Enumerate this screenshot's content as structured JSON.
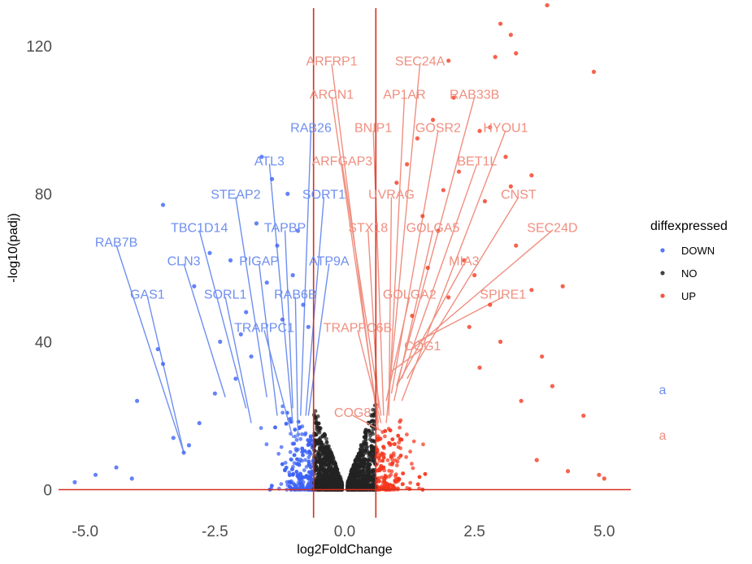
{
  "chart_data": {
    "type": "scatter",
    "xlabel": "log2FoldChange",
    "ylabel": "-log10(padj)",
    "xlim": [
      -5.6,
      5.5
    ],
    "ylim": [
      -7,
      131
    ],
    "x_ticks": [
      {
        "value": -5,
        "label": "-5.0"
      },
      {
        "value": -2.5,
        "label": "-2.5"
      },
      {
        "value": 0,
        "label": "0.0"
      },
      {
        "value": 2.5,
        "label": "2.5"
      },
      {
        "value": 5,
        "label": "5.0"
      }
    ],
    "y_ticks": [
      {
        "value": 0,
        "label": "0"
      },
      {
        "value": 40,
        "label": "40"
      },
      {
        "value": 80,
        "label": "80"
      },
      {
        "value": 120,
        "label": "120"
      }
    ],
    "grid": false,
    "threshold_lines": {
      "vertical": [
        -0.6,
        0.6
      ],
      "horizontal": [
        0
      ]
    },
    "colors": {
      "DOWN": "#3a5ff5",
      "NO": "#222222",
      "UP": "#f4361c",
      "line": "#d7301f",
      "down_label": "#6f8ff0",
      "up_label": "#f08f80"
    },
    "legend": {
      "title": "diffexpressed",
      "position": "right",
      "entries": [
        "DOWN",
        "NO",
        "UP"
      ],
      "extra_glyphs": [
        {
          "text": "a",
          "group": "DOWN"
        },
        {
          "text": "a",
          "group": "UP"
        }
      ]
    },
    "highlight_points": {
      "DOWN": [
        [
          -3.5,
          77
        ],
        [
          -1.6,
          90
        ],
        [
          -1.4,
          84
        ],
        [
          -1.1,
          80
        ],
        [
          -1.7,
          72
        ],
        [
          -2.2,
          62
        ],
        [
          -2.6,
          64
        ],
        [
          -2.9,
          55
        ],
        [
          -3.1,
          10
        ],
        [
          -3.6,
          38
        ],
        [
          -4.0,
          24
        ],
        [
          -3.5,
          34
        ],
        [
          -2.5,
          26
        ],
        [
          -2.1,
          30
        ],
        [
          -1.9,
          48
        ],
        [
          -1.5,
          56
        ],
        [
          -1.3,
          66
        ],
        [
          -1.0,
          58
        ],
        [
          -0.9,
          70
        ],
        [
          -1.2,
          46
        ],
        [
          -0.8,
          50
        ],
        [
          -0.7,
          44
        ],
        [
          -2.8,
          18
        ],
        [
          -2.4,
          40
        ],
        [
          -1.8,
          36
        ],
        [
          -3.3,
          14
        ],
        [
          -4.4,
          6
        ],
        [
          -4.8,
          4
        ],
        [
          -5.2,
          2
        ],
        [
          -4.1,
          3
        ],
        [
          -3.0,
          12
        ],
        [
          -2.0,
          42
        ]
      ],
      "UP": [
        [
          3.9,
          131
        ],
        [
          3.0,
          126
        ],
        [
          3.2,
          123
        ],
        [
          4.8,
          113
        ],
        [
          3.3,
          118
        ],
        [
          2.9,
          117
        ],
        [
          2.0,
          116
        ],
        [
          2.1,
          106
        ],
        [
          2.6,
          97
        ],
        [
          2.8,
          98
        ],
        [
          3.1,
          90
        ],
        [
          3.6,
          85
        ],
        [
          3.2,
          82
        ],
        [
          2.2,
          86
        ],
        [
          1.9,
          81
        ],
        [
          2.7,
          78
        ],
        [
          3.3,
          66
        ],
        [
          2.5,
          58
        ],
        [
          4.2,
          55
        ],
        [
          3.6,
          54
        ],
        [
          2.8,
          50
        ],
        [
          1.7,
          100
        ],
        [
          1.4,
          95
        ],
        [
          1.2,
          88
        ],
        [
          1.0,
          83
        ],
        [
          1.5,
          74
        ],
        [
          1.8,
          70
        ],
        [
          2.3,
          62
        ],
        [
          1.6,
          60
        ],
        [
          2.0,
          52
        ],
        [
          1.3,
          47
        ],
        [
          2.4,
          44
        ],
        [
          3.0,
          40
        ],
        [
          3.8,
          36
        ],
        [
          4.6,
          20
        ],
        [
          4.0,
          28
        ],
        [
          3.4,
          24
        ],
        [
          2.6,
          33
        ],
        [
          4.9,
          4
        ],
        [
          5.0,
          3
        ],
        [
          4.3,
          5
        ],
        [
          3.7,
          8
        ]
      ]
    },
    "labels": [
      {
        "gene": "RAB7B",
        "group": "DOWN",
        "x": -3.1,
        "y": 10,
        "lx": -4.4,
        "ly": 67
      },
      {
        "gene": "GAS1",
        "group": "DOWN",
        "x": -3.1,
        "y": 10,
        "lx": -3.8,
        "ly": 53
      },
      {
        "gene": "CLN3",
        "group": "DOWN",
        "x": -2.3,
        "y": 25,
        "lx": -3.1,
        "ly": 62
      },
      {
        "gene": "TBC1D14",
        "group": "DOWN",
        "x": -1.9,
        "y": 22,
        "lx": -2.8,
        "ly": 71
      },
      {
        "gene": "SORL1",
        "group": "DOWN",
        "x": -1.8,
        "y": 18,
        "lx": -2.3,
        "ly": 53
      },
      {
        "gene": "STEAP2",
        "group": "DOWN",
        "x": -1.5,
        "y": 25,
        "lx": -2.1,
        "ly": 80
      },
      {
        "gene": "PIGAP",
        "group": "DOWN",
        "x": -1.3,
        "y": 20,
        "lx": -1.65,
        "ly": 62
      },
      {
        "gene": "ATL3",
        "group": "DOWN",
        "x": -1.0,
        "y": 18,
        "lx": -1.45,
        "ly": 89
      },
      {
        "gene": "TRAPPC1",
        "group": "DOWN",
        "x": -1.0,
        "y": 14,
        "lx": -1.55,
        "ly": 44
      },
      {
        "gene": "TAPBP",
        "group": "DOWN",
        "x": -1.0,
        "y": 22,
        "lx": -1.15,
        "ly": 71
      },
      {
        "gene": "RAB6B",
        "group": "DOWN",
        "x": -0.9,
        "y": 14,
        "lx": -0.95,
        "ly": 53
      },
      {
        "gene": "RAB26",
        "group": "DOWN",
        "x": -0.85,
        "y": 20,
        "lx": -0.65,
        "ly": 98
      },
      {
        "gene": "SORT1",
        "group": "DOWN",
        "x": -0.75,
        "y": 20,
        "lx": -0.4,
        "ly": 80
      },
      {
        "gene": "ATP9A",
        "group": "DOWN",
        "x": -0.7,
        "y": 20,
        "lx": -0.3,
        "ly": 62
      },
      {
        "gene": "ARFRP1",
        "group": "UP",
        "x": 0.65,
        "y": 16,
        "lx": -0.25,
        "ly": 116
      },
      {
        "gene": "ARCN1",
        "group": "UP",
        "x": 0.65,
        "y": 18,
        "lx": -0.25,
        "ly": 107
      },
      {
        "gene": "ARFGAP3",
        "group": "UP",
        "x": 0.7,
        "y": 20,
        "lx": -0.05,
        "ly": 89
      },
      {
        "gene": "STX18",
        "group": "UP",
        "x": 0.65,
        "y": 22,
        "lx": 0.45,
        "ly": 71
      },
      {
        "gene": "TRAPPC6B",
        "group": "UP",
        "x": 0.7,
        "y": 18,
        "lx": 0.25,
        "ly": 44
      },
      {
        "gene": "COG8",
        "group": "UP",
        "x": 0.7,
        "y": 16,
        "lx": 0.15,
        "ly": 21
      },
      {
        "gene": "BNIP1",
        "group": "UP",
        "x": 0.75,
        "y": 20,
        "lx": 0.55,
        "ly": 98
      },
      {
        "gene": "SEC24A",
        "group": "UP",
        "x": 0.8,
        "y": 18,
        "lx": 1.45,
        "ly": 116
      },
      {
        "gene": "AP1AR",
        "group": "UP",
        "x": 0.85,
        "y": 22,
        "lx": 1.15,
        "ly": 107
      },
      {
        "gene": "UVRAG",
        "group": "UP",
        "x": 0.85,
        "y": 20,
        "lx": 0.9,
        "ly": 80
      },
      {
        "gene": "GOLGA2",
        "group": "UP",
        "x": 0.8,
        "y": 24,
        "lx": 1.25,
        "ly": 53
      },
      {
        "gene": "GOSR2",
        "group": "UP",
        "x": 0.9,
        "y": 26,
        "lx": 1.8,
        "ly": 98
      },
      {
        "gene": "GOLGA5",
        "group": "UP",
        "x": 0.95,
        "y": 24,
        "lx": 1.7,
        "ly": 71
      },
      {
        "gene": "RAB33B",
        "group": "UP",
        "x": 1.0,
        "y": 28,
        "lx": 2.5,
        "ly": 107
      },
      {
        "gene": "BET1L",
        "group": "UP",
        "x": 1.1,
        "y": 30,
        "lx": 2.55,
        "ly": 89
      },
      {
        "gene": "COG1",
        "group": "UP",
        "x": 0.9,
        "y": 32,
        "lx": 1.5,
        "ly": 39
      },
      {
        "gene": "HYOU1",
        "group": "UP",
        "x": 1.1,
        "y": 24,
        "lx": 3.1,
        "ly": 98
      },
      {
        "gene": "MIA3",
        "group": "UP",
        "x": 1.0,
        "y": 28,
        "lx": 2.3,
        "ly": 62
      },
      {
        "gene": "CNST",
        "group": "UP",
        "x": 1.2,
        "y": 30,
        "lx": 3.35,
        "ly": 80
      },
      {
        "gene": "SEC24D",
        "group": "UP",
        "x": 1.3,
        "y": 38,
        "lx": 4.0,
        "ly": 71
      },
      {
        "gene": "SPIRE1",
        "group": "UP",
        "x": 1.4,
        "y": 40,
        "lx": 3.05,
        "ly": 53
      }
    ]
  }
}
